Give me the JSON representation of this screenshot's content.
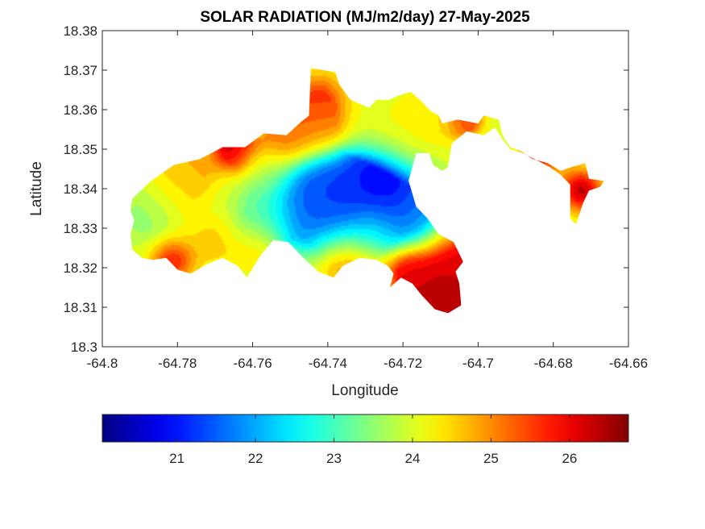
{
  "chart_data": {
    "type": "heatmap",
    "title": "SOLAR RADIATION (MJ/m2/day) 27-May-2025",
    "xlabel": "Longitude",
    "ylabel": "Latitude",
    "xlim": [
      -64.8,
      -64.66
    ],
    "ylim": [
      18.3,
      18.38
    ],
    "x_ticks": [
      "-64.8",
      "-64.78",
      "-64.76",
      "-64.74",
      "-64.72",
      "-64.7",
      "-64.68",
      "-64.66"
    ],
    "y_ticks": [
      "18.3",
      "18.31",
      "18.32",
      "18.33",
      "18.34",
      "18.35",
      "18.36",
      "18.37",
      "18.38"
    ],
    "grid": false,
    "colormap": "jet",
    "colorbar": {
      "placement": "bottom",
      "range": [
        20.05,
        26.75
      ],
      "ticks": [
        "21",
        "22",
        "23",
        "24",
        "25",
        "26"
      ]
    },
    "land": [
      [
        -64.792,
        18.3375
      ],
      [
        -64.787,
        18.342
      ],
      [
        -64.781,
        18.346
      ],
      [
        -64.774,
        18.3475
      ],
      [
        -64.768,
        18.3505
      ],
      [
        -64.762,
        18.3505
      ],
      [
        -64.757,
        18.354
      ],
      [
        -64.751,
        18.3535
      ],
      [
        -64.747,
        18.357
      ],
      [
        -64.745,
        18.3585
      ],
      [
        -64.7445,
        18.3705
      ],
      [
        -64.738,
        18.3695
      ],
      [
        -64.737,
        18.3665
      ],
      [
        -64.734,
        18.3625
      ],
      [
        -64.729,
        18.3605
      ],
      [
        -64.727,
        18.3625
      ],
      [
        -64.7235,
        18.3625
      ],
      [
        -64.7215,
        18.3635
      ],
      [
        -64.718,
        18.3645
      ],
      [
        -64.7155,
        18.3625
      ],
      [
        -64.7125,
        18.3595
      ],
      [
        -64.7105,
        18.3585
      ],
      [
        -64.7095,
        18.3565
      ],
      [
        -64.7055,
        18.3575
      ],
      [
        -64.7,
        18.3565
      ],
      [
        -64.6985,
        18.3585
      ],
      [
        -64.6945,
        18.3575
      ],
      [
        -64.6935,
        18.3535
      ],
      [
        -64.6915,
        18.3505
      ],
      [
        -64.6885,
        18.3495
      ],
      [
        -64.6855,
        18.3475
      ],
      [
        -64.6815,
        18.3465
      ],
      [
        -64.678,
        18.3445
      ],
      [
        -64.675,
        18.3455
      ],
      [
        -64.6715,
        18.3465
      ],
      [
        -64.6705,
        18.3425
      ],
      [
        -64.6665,
        18.342
      ],
      [
        -64.6675,
        18.3405
      ],
      [
        -64.6705,
        18.3395
      ],
      [
        -64.672,
        18.3365
      ],
      [
        -64.674,
        18.331
      ],
      [
        -64.6755,
        18.3325
      ],
      [
        -64.6755,
        18.341
      ],
      [
        -64.678,
        18.3435
      ],
      [
        -64.681,
        18.3455
      ],
      [
        -64.684,
        18.347
      ],
      [
        -64.688,
        18.349
      ],
      [
        -64.6915,
        18.35
      ],
      [
        -64.6935,
        18.3525
      ],
      [
        -64.6955,
        18.3555
      ],
      [
        -64.6985,
        18.3535
      ],
      [
        -64.703,
        18.3545
      ],
      [
        -64.707,
        18.3515
      ],
      [
        -64.708,
        18.3455
      ],
      [
        -64.7095,
        18.3445
      ],
      [
        -64.712,
        18.346
      ],
      [
        -64.713,
        18.349
      ],
      [
        -64.7165,
        18.349
      ],
      [
        -64.7185,
        18.342
      ],
      [
        -64.7165,
        18.3355
      ],
      [
        -64.7135,
        18.3325
      ],
      [
        -64.7105,
        18.3285
      ],
      [
        -64.7065,
        18.3265
      ],
      [
        -64.704,
        18.3215
      ],
      [
        -64.706,
        18.319
      ],
      [
        -64.705,
        18.316
      ],
      [
        -64.7045,
        18.3105
      ],
      [
        -64.708,
        18.3085
      ],
      [
        -64.7115,
        18.3095
      ],
      [
        -64.715,
        18.313
      ],
      [
        -64.7175,
        18.316
      ],
      [
        -64.7205,
        18.3175
      ],
      [
        -64.7235,
        18.315
      ],
      [
        -64.7225,
        18.3185
      ],
      [
        -64.724,
        18.3205
      ],
      [
        -64.727,
        18.322
      ],
      [
        -64.7315,
        18.3225
      ],
      [
        -64.736,
        18.3205
      ],
      [
        -64.7385,
        18.3175
      ],
      [
        -64.7425,
        18.319
      ],
      [
        -64.7465,
        18.3225
      ],
      [
        -64.7505,
        18.3265
      ],
      [
        -64.7545,
        18.327
      ],
      [
        -64.758,
        18.323
      ],
      [
        -64.7615,
        18.3175
      ],
      [
        -64.764,
        18.3205
      ],
      [
        -64.768,
        18.3225
      ],
      [
        -64.772,
        18.321
      ],
      [
        -64.7765,
        18.3185
      ],
      [
        -64.78,
        18.3195
      ],
      [
        -64.783,
        18.3225
      ],
      [
        -64.7865,
        18.322
      ],
      [
        -64.7895,
        18.3225
      ],
      [
        -64.792,
        18.3245
      ],
      [
        -64.7925,
        18.3285
      ],
      [
        -64.7915,
        18.332
      ],
      [
        -64.7925,
        18.3345
      ]
    ],
    "sources": [
      {
        "x": -64.745,
        "y": 18.335,
        "value": 21.5,
        "sigma": 0.008
      },
      {
        "x": -64.738,
        "y": 18.3365,
        "value": 21.2,
        "sigma": 0.007
      },
      {
        "x": -64.727,
        "y": 18.3375,
        "value": 20.3,
        "sigma": 0.007
      },
      {
        "x": -64.7355,
        "y": 18.34,
        "value": 21.4,
        "sigma": 0.006
      },
      {
        "x": -64.7165,
        "y": 18.3345,
        "value": 21.9,
        "sigma": 0.006
      },
      {
        "x": -64.705,
        "y": 18.3205,
        "value": 26.0,
        "sigma": 0.007
      },
      {
        "x": -64.708,
        "y": 18.3125,
        "value": 26.6,
        "sigma": 0.006
      },
      {
        "x": -64.7185,
        "y": 18.3185,
        "value": 26.1,
        "sigma": 0.004
      },
      {
        "x": -64.735,
        "y": 18.3225,
        "value": 25.3,
        "sigma": 0.006
      },
      {
        "x": -64.765,
        "y": 18.35,
        "value": 26.4,
        "sigma": 0.004
      },
      {
        "x": -64.7425,
        "y": 18.3625,
        "value": 25.6,
        "sigma": 0.005
      },
      {
        "x": -64.7515,
        "y": 18.3525,
        "value": 25.4,
        "sigma": 0.005
      },
      {
        "x": -64.7415,
        "y": 18.354,
        "value": 25.0,
        "sigma": 0.005
      },
      {
        "x": -64.7095,
        "y": 18.358,
        "value": 24.4,
        "sigma": 0.006
      },
      {
        "x": -64.7035,
        "y": 18.3575,
        "value": 25.9,
        "sigma": 0.003
      },
      {
        "x": -64.6725,
        "y": 18.3395,
        "value": 26.3,
        "sigma": 0.004
      },
      {
        "x": -64.6835,
        "y": 18.3475,
        "value": 25.6,
        "sigma": 0.004
      },
      {
        "x": -64.788,
        "y": 18.333,
        "value": 23.4,
        "sigma": 0.005
      },
      {
        "x": -64.7815,
        "y": 18.3385,
        "value": 24.3,
        "sigma": 0.006
      },
      {
        "x": -64.7765,
        "y": 18.3445,
        "value": 24.8,
        "sigma": 0.005
      },
      {
        "x": -64.7815,
        "y": 18.3215,
        "value": 25.7,
        "sigma": 0.004
      },
      {
        "x": -64.77,
        "y": 18.3265,
        "value": 24.6,
        "sigma": 0.005
      },
      {
        "x": -64.7575,
        "y": 18.332,
        "value": 23.4,
        "sigma": 0.006
      },
      {
        "x": -64.7575,
        "y": 18.3445,
        "value": 23.9,
        "sigma": 0.005
      },
      {
        "x": -64.72,
        "y": 18.3575,
        "value": 24.2,
        "sigma": 0.006
      },
      {
        "x": -64.7285,
        "y": 18.33,
        "value": 23.1,
        "sigma": 0.005
      },
      {
        "x": -64.7585,
        "y": 18.3245,
        "value": 24.7,
        "sigma": 0.004
      }
    ]
  }
}
